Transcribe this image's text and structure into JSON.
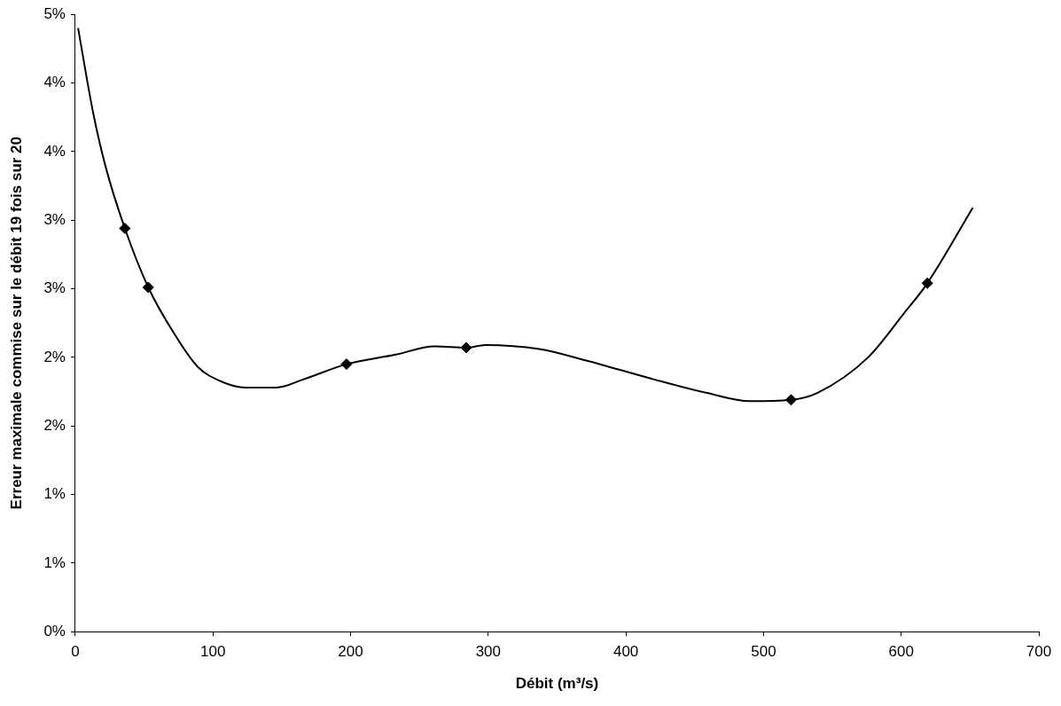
{
  "chart_data": {
    "type": "scatter",
    "xlabel": "Débit (m³/s)",
    "ylabel": "Erreur maximale commise sur le débit 19 fois sur 20",
    "xlim": [
      0,
      700
    ],
    "xticks": [
      0,
      100,
      200,
      300,
      400,
      500,
      600,
      700
    ],
    "ylim": [
      0,
      4.5
    ],
    "yticks": [
      {
        "value": 0,
        "label": "0%"
      },
      {
        "value": 0.5,
        "label": "1%"
      },
      {
        "value": 1,
        "label": "1%"
      },
      {
        "value": 1.5,
        "label": "2%"
      },
      {
        "value": 2,
        "label": "2%"
      },
      {
        "value": 2.5,
        "label": "3%"
      },
      {
        "value": 3,
        "label": "3%"
      },
      {
        "value": 3.5,
        "label": "4%"
      },
      {
        "value": 4,
        "label": "4%"
      },
      {
        "value": 4.5,
        "label": "5%"
      }
    ],
    "grid": false,
    "legend": false,
    "series": [
      {
        "type": "line",
        "color": "#000000",
        "marker": "none",
        "line_style": "solid",
        "x": [
          2,
          13,
          22,
          36,
          53,
          72,
          89,
          107,
          123,
          146,
          166,
          197,
          233,
          261,
          284,
          298,
          337,
          370,
          420,
          459,
          490,
          520,
          539,
          576,
          602,
          619,
          652
        ],
        "values": [
          4.4,
          3.78,
          3.39,
          2.94,
          2.51,
          2.17,
          1.93,
          1.82,
          1.78,
          1.78,
          1.84,
          1.95,
          2.02,
          2.08,
          2.07,
          2.09,
          2.06,
          1.98,
          1.84,
          1.74,
          1.68,
          1.69,
          1.74,
          2.0,
          2.32,
          2.54,
          3.09
        ]
      },
      {
        "type": "scatter",
        "color": "#000000",
        "marker": "diamond",
        "x": [
          36,
          53,
          197,
          284,
          520,
          619
        ],
        "values": [
          2.94,
          2.51,
          1.95,
          2.07,
          1.69,
          2.54
        ]
      }
    ]
  }
}
